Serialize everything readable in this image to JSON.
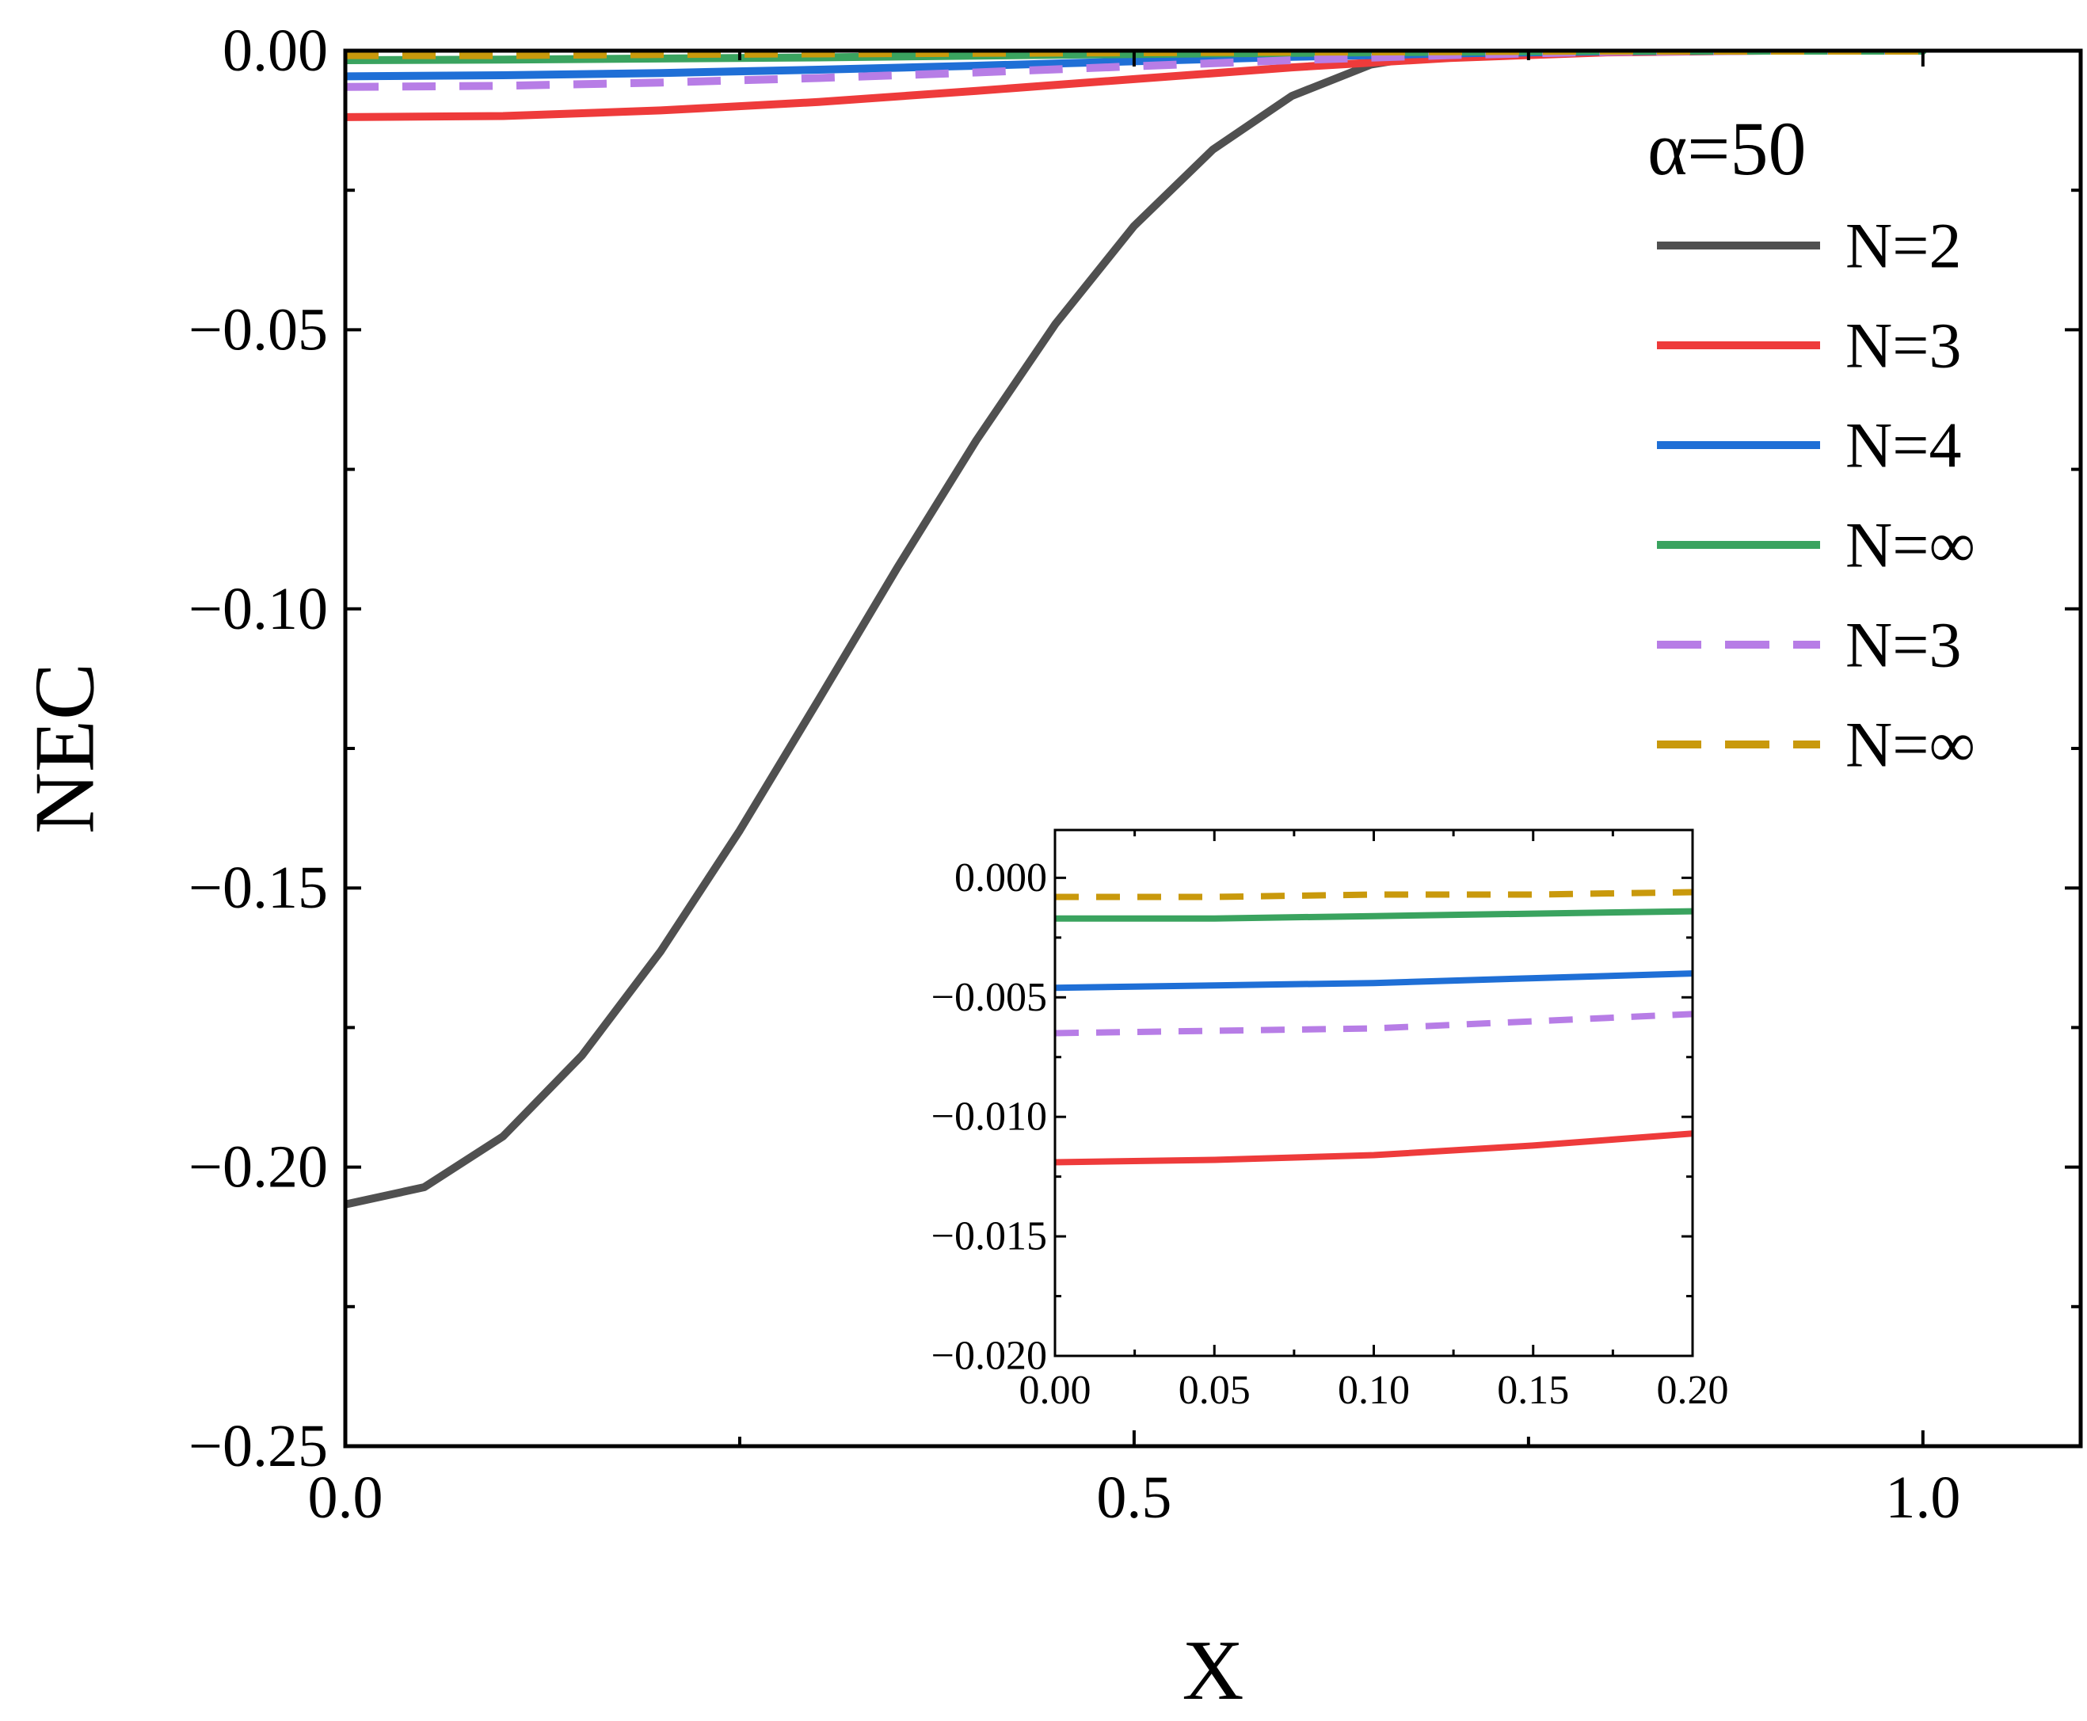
{
  "chart_data": [
    {
      "type": "line",
      "panel": "main",
      "title": "",
      "xlabel": "X",
      "ylabel": "NEC",
      "xlim": [
        0.0,
        1.1
      ],
      "ylim": [
        -0.25,
        0.0
      ],
      "xticks": [
        0.0,
        0.5,
        1.0
      ],
      "xtick_labels": [
        "0.0",
        "0.5",
        "1.0"
      ],
      "yticks": [
        0.0,
        -0.05,
        -0.1,
        -0.15,
        -0.2,
        -0.25
      ],
      "ytick_labels": [
        "0.00",
        "−0.05",
        "−0.10",
        "−0.15",
        "−0.20",
        "−0.25"
      ],
      "grid": false,
      "legend": {
        "title": "α=50",
        "placement": "top-right",
        "entries": [
          "N=2",
          "N=3",
          "N=4",
          "N=∞",
          "N=3",
          "N=∞"
        ]
      },
      "series": [
        {
          "name": "N=2",
          "style": "solid",
          "color": "#505050",
          "x": [
            0.0,
            0.05,
            0.1,
            0.15,
            0.2,
            0.25,
            0.3,
            0.35,
            0.4,
            0.45,
            0.5,
            0.55,
            0.6,
            0.65,
            0.7,
            0.75,
            0.8,
            0.85,
            0.9,
            0.95,
            1.0
          ],
          "y": [
            -0.2067,
            -0.2036,
            -0.1945,
            -0.18,
            -0.1613,
            -0.1397,
            -0.1163,
            -0.0926,
            -0.0698,
            -0.049,
            -0.0314,
            -0.0177,
            -0.0081,
            -0.0025,
            -0.0002,
            0.0,
            0.0,
            0.0,
            0.0,
            0.0,
            0.0
          ]
        },
        {
          "name": "N=3",
          "style": "solid",
          "color": "#ee3b3b",
          "x": [
            0.0,
            0.1,
            0.2,
            0.3,
            0.4,
            0.5,
            0.6,
            0.7,
            0.8,
            0.9,
            1.0
          ],
          "y": [
            -0.0119,
            -0.0117,
            -0.0107,
            -0.0092,
            -0.0072,
            -0.0051,
            -0.003,
            -0.0013,
            -0.0003,
            0.0,
            0.0
          ]
        },
        {
          "name": "N=4",
          "style": "solid",
          "color": "#1f6fd6",
          "x": [
            0.0,
            0.1,
            0.2,
            0.3,
            0.4,
            0.5,
            0.6,
            0.7,
            0.8,
            0.9,
            1.0
          ],
          "y": [
            -0.0046,
            -0.0044,
            -0.004,
            -0.0034,
            -0.0027,
            -0.0019,
            -0.0011,
            -0.0005,
            -0.0001,
            0.0,
            0.0
          ]
        },
        {
          "name": "N=∞",
          "style": "solid",
          "color": "#3aa35f",
          "x": [
            0.0,
            0.1,
            0.2,
            0.3,
            0.4,
            0.5,
            0.6,
            0.7,
            0.8,
            0.9,
            1.0
          ],
          "y": [
            -0.0017,
            -0.0016,
            -0.0014,
            -0.0012,
            -0.0009,
            -0.0006,
            -0.0004,
            -0.0002,
            0.0,
            0.0,
            0.0
          ]
        },
        {
          "name": "N=3",
          "style": "dashed",
          "color": "#b77de6",
          "x": [
            0.0,
            0.1,
            0.2,
            0.3,
            0.4,
            0.5,
            0.6,
            0.7,
            0.8,
            0.9,
            1.0
          ],
          "y": [
            -0.0065,
            -0.0063,
            -0.0057,
            -0.0049,
            -0.0039,
            -0.0028,
            -0.0017,
            -0.0008,
            -0.0002,
            0.0,
            0.0
          ]
        },
        {
          "name": "N=∞",
          "style": "dashed",
          "color": "#c9990c",
          "x": [
            0.0,
            0.1,
            0.2,
            0.3,
            0.4,
            0.5,
            0.6,
            0.7,
            0.8,
            0.9,
            1.0
          ],
          "y": [
            -0.0008,
            -0.0008,
            -0.0006,
            -0.0005,
            -0.0004,
            -0.0003,
            -0.0002,
            -0.0001,
            0.0,
            0.0,
            0.0
          ]
        }
      ]
    },
    {
      "type": "line",
      "panel": "inset",
      "title": "",
      "xlabel": "",
      "ylabel": "",
      "xlim": [
        0.0,
        0.2
      ],
      "ylim": [
        -0.02,
        0.002
      ],
      "xticks": [
        0.0,
        0.05,
        0.1,
        0.15,
        0.2
      ],
      "xtick_labels": [
        "0.00",
        "0.05",
        "0.10",
        "0.15",
        "0.20"
      ],
      "yticks": [
        0.0,
        -0.005,
        -0.01,
        -0.015,
        -0.02
      ],
      "ytick_labels": [
        "0.000",
        "−0.005",
        "−0.010",
        "−0.015",
        "−0.020"
      ],
      "grid": false,
      "series": [
        {
          "name": "N=3",
          "style": "solid",
          "color": "#ee3b3b",
          "x": [
            0.0,
            0.05,
            0.1,
            0.15,
            0.2
          ],
          "y": [
            -0.0119,
            -0.0118,
            -0.0116,
            -0.0112,
            -0.0107
          ]
        },
        {
          "name": "N=4",
          "style": "solid",
          "color": "#1f6fd6",
          "x": [
            0.0,
            0.05,
            0.1,
            0.15,
            0.2
          ],
          "y": [
            -0.0046,
            -0.0045,
            -0.0044,
            -0.0042,
            -0.004
          ]
        },
        {
          "name": "N=∞",
          "style": "solid",
          "color": "#3aa35f",
          "x": [
            0.0,
            0.05,
            0.1,
            0.15,
            0.2
          ],
          "y": [
            -0.0017,
            -0.0017,
            -0.0016,
            -0.0015,
            -0.0014
          ]
        },
        {
          "name": "N=3",
          "style": "dashed",
          "color": "#b77de6",
          "x": [
            0.0,
            0.05,
            0.1,
            0.15,
            0.2
          ],
          "y": [
            -0.0065,
            -0.0064,
            -0.0063,
            -0.006,
            -0.0057
          ]
        },
        {
          "name": "N=∞",
          "style": "dashed",
          "color": "#c9990c",
          "x": [
            0.0,
            0.05,
            0.1,
            0.15,
            0.2
          ],
          "y": [
            -0.0008,
            -0.0008,
            -0.0007,
            -0.0007,
            -0.0006
          ]
        }
      ]
    }
  ]
}
